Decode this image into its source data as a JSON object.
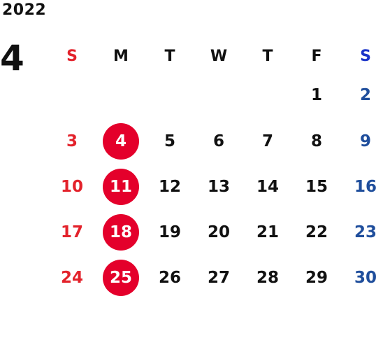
{
  "year": "2022",
  "month": "4",
  "weekdays": [
    "S",
    "M",
    "T",
    "W",
    "T",
    "F",
    "S"
  ],
  "colors": {
    "sunday": "#e3222b",
    "saturday": "#1f4e9c",
    "holiday_circle": "#e4002b",
    "text": "#111111"
  },
  "weeks": [
    [
      "",
      "",
      "",
      "",
      "",
      "1",
      "2"
    ],
    [
      "3",
      "4",
      "5",
      "6",
      "7",
      "8",
      "9"
    ],
    [
      "10",
      "11",
      "12",
      "13",
      "14",
      "15",
      "16"
    ],
    [
      "17",
      "18",
      "19",
      "20",
      "21",
      "22",
      "23"
    ],
    [
      "24",
      "25",
      "26",
      "27",
      "28",
      "29",
      "30"
    ]
  ],
  "highlighted_days": [
    "4",
    "11",
    "18",
    "25"
  ]
}
